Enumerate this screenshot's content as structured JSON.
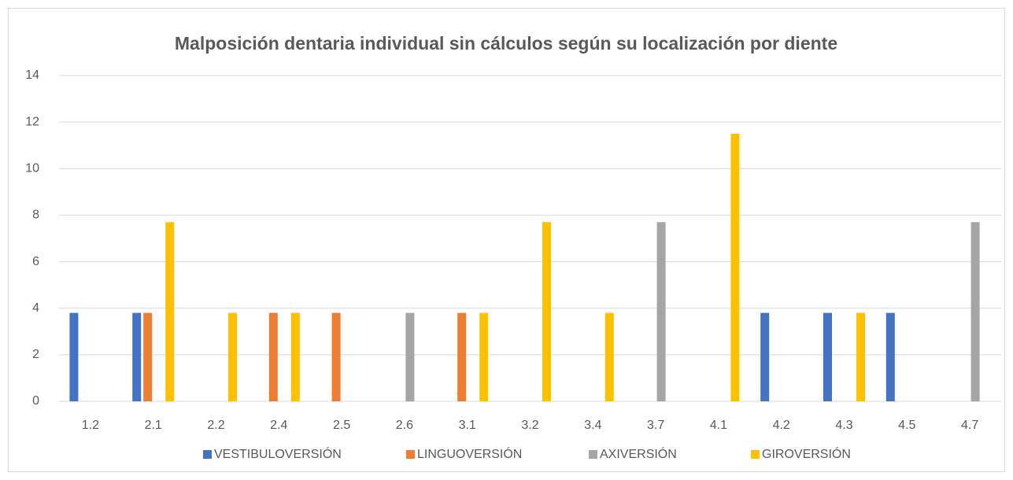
{
  "chart_data": {
    "type": "bar",
    "title": "Malposición dentaria individual sin cálculos según su localización por diente",
    "categories": [
      "1.2",
      "2.1",
      "2.2",
      "2.4",
      "2.5",
      "2.6",
      "3.1",
      "3.2",
      "3.4",
      "3.7",
      "4.1",
      "4.2",
      "4.3",
      "4.5",
      "4.7"
    ],
    "series": [
      {
        "name": "VESTIBULOVERSIÓN",
        "color": "#4472c4",
        "values": [
          3.8,
          3.8,
          0,
          0,
          0,
          0,
          0,
          0,
          0,
          0,
          0,
          3.8,
          3.8,
          3.8,
          0
        ]
      },
      {
        "name": "LINGUOVERSIÓN",
        "color": "#ed7d31",
        "values": [
          0,
          3.8,
          0,
          3.8,
          3.8,
          0,
          3.8,
          0,
          0,
          0,
          0,
          0,
          0,
          0,
          0
        ]
      },
      {
        "name": "AXIVERSIÓN",
        "color": "#a5a5a5",
        "values": [
          0,
          0,
          0,
          0,
          0,
          3.8,
          0,
          0,
          0,
          7.7,
          0,
          0,
          0,
          0,
          7.7
        ]
      },
      {
        "name": "GIROVERSIÓN",
        "color": "#ffc000",
        "values": [
          0,
          7.7,
          3.8,
          3.8,
          0,
          0,
          3.8,
          7.7,
          3.8,
          0,
          11.5,
          0,
          3.8,
          0,
          0
        ]
      }
    ],
    "ylim": [
      0,
      14
    ],
    "yticks": [
      0,
      2,
      4,
      6,
      8,
      10,
      12,
      14
    ],
    "grid": true,
    "legend": "bottom"
  }
}
